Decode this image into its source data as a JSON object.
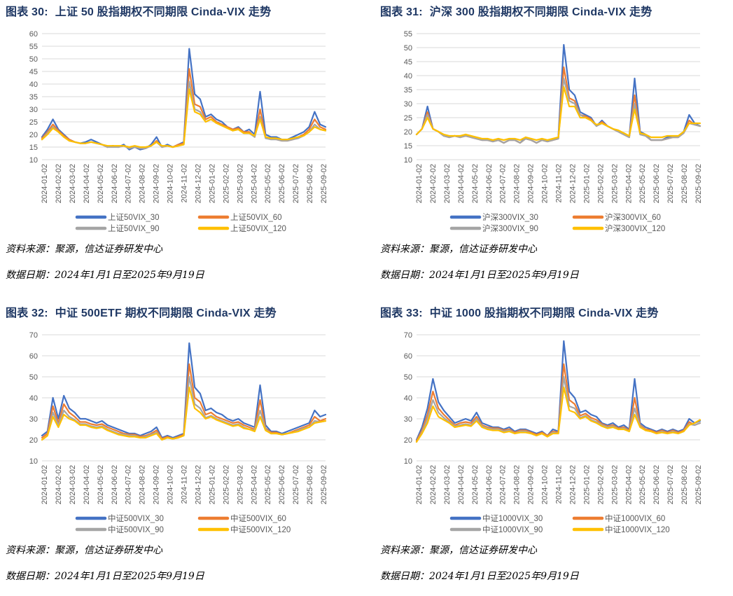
{
  "source_label": "资料来源：聚源，信达证券研发中心",
  "date_label": "数据日期：2024年1月1日至2025年9月19日",
  "xticks": [
    "2024-01-02",
    "2024-02-02",
    "2024-03-02",
    "2024-04-02",
    "2024-05-02",
    "2024-06-02",
    "2024-07-02",
    "2024-08-02",
    "2024-09-02",
    "2024-10-02",
    "2024-11-02",
    "2024-12-02",
    "2025-01-02",
    "2025-02-02",
    "2025-03-02",
    "2025-04-02",
    "2025-05-02",
    "2025-06-02",
    "2025-07-02",
    "2025-08-02",
    "2025-09-02"
  ],
  "colors": {
    "s30": "#4472c4",
    "s60": "#ed7d31",
    "s90": "#a5a5a5",
    "s120": "#ffc000",
    "title": "#1f3864"
  },
  "chart_data": [
    {
      "type": "line",
      "fig_num": "图表 30:",
      "title": "上证 50 股指期权不同期限 Cinda-VIX 走势",
      "ylim": [
        10,
        60
      ],
      "ystep": 5,
      "grid": true,
      "legend": "bottom",
      "series_names": [
        "上证50VIX_30",
        "上证50VIX_60",
        "上证50VIX_90",
        "上证50VIX_120"
      ],
      "series": [
        {
          "name": "上证50VIX_30",
          "values": [
            19,
            22,
            26,
            22,
            20,
            18,
            17,
            16.5,
            17,
            18,
            17,
            16,
            15,
            15.5,
            15,
            16,
            14,
            15,
            14,
            14.5,
            16,
            19,
            15,
            16,
            15,
            16,
            17,
            54,
            36,
            34,
            27,
            28,
            26,
            25,
            23,
            22,
            23,
            21,
            22,
            20,
            37,
            20,
            19,
            19,
            18,
            18,
            19,
            20,
            21,
            23,
            29,
            24,
            23
          ]
        },
        {
          "name": "上证50VIX_60",
          "values": [
            18.5,
            21,
            24,
            21.5,
            19.5,
            18,
            17,
            16.5,
            16.5,
            17,
            16.5,
            16,
            15,
            15.5,
            15,
            15.5,
            14.5,
            15,
            14.5,
            14.5,
            15.5,
            17.5,
            15,
            15.5,
            15,
            16,
            16.5,
            46,
            32,
            31,
            26,
            27,
            25,
            24,
            23,
            22,
            22.5,
            21,
            21,
            19,
            30,
            19,
            18.5,
            18,
            17.5,
            17.5,
            18,
            19,
            20,
            22,
            26,
            23,
            22
          ]
        },
        {
          "name": "上证50VIX_90",
          "values": [
            18,
            20.5,
            23,
            21,
            19,
            17.5,
            17,
            16.5,
            16.5,
            17,
            16.5,
            16,
            15,
            15,
            15,
            15.5,
            14.5,
            15,
            14.5,
            14.5,
            15.5,
            17,
            15,
            15.5,
            15,
            15.5,
            16,
            41,
            30,
            29,
            25,
            26,
            24.5,
            23.5,
            22.5,
            21.5,
            22,
            20.5,
            20.5,
            19,
            27,
            18.5,
            18,
            18,
            17.5,
            17.5,
            18,
            18.5,
            19.5,
            21,
            24,
            22,
            21.5
          ]
        },
        {
          "name": "上证50VIX_120",
          "values": [
            18,
            20,
            22.5,
            21,
            19,
            17.5,
            17,
            16.5,
            16.5,
            17,
            16.5,
            16,
            15.5,
            15.5,
            15.5,
            15.5,
            15,
            15.5,
            15,
            15,
            15.5,
            17,
            15.5,
            15.5,
            15,
            15.5,
            16,
            38,
            29,
            28,
            25,
            26,
            24.5,
            23.5,
            22.5,
            21.5,
            22,
            20.5,
            20.5,
            19.5,
            26,
            19,
            18.5,
            18.5,
            18,
            18,
            18.5,
            19,
            19.5,
            21,
            23,
            22,
            21.5
          ]
        }
      ]
    },
    {
      "type": "line",
      "fig_num": "图表 31:",
      "title": "沪深 300 股指期权不同期限 Cinda-VIX 走势",
      "ylim": [
        10,
        55
      ],
      "ystep": 5,
      "grid": true,
      "legend": "bottom",
      "series_names": [
        "沪深300VIX_30",
        "沪深300VIX_60",
        "沪深300VIX_90",
        "沪深300VIX_120"
      ],
      "series": [
        {
          "name": "沪深300VIX_30",
          "values": [
            19,
            21,
            29,
            21,
            20,
            18.5,
            18,
            18.5,
            18,
            19,
            18,
            17.5,
            17,
            17,
            16.5,
            17,
            16,
            17,
            17,
            16,
            18,
            17,
            16,
            17,
            16.5,
            17,
            18,
            51,
            35,
            33,
            27,
            26,
            25,
            22,
            24,
            22,
            21,
            20,
            19,
            18,
            39,
            20,
            19,
            17,
            17,
            17,
            18,
            18,
            18,
            20,
            26,
            23,
            22
          ]
        },
        {
          "name": "沪深300VIX_60",
          "values": [
            19,
            21,
            27,
            21,
            20,
            18.5,
            18,
            18.5,
            18,
            18.5,
            18,
            17.5,
            17,
            17,
            16.5,
            17,
            16,
            17,
            17,
            16,
            17.5,
            17,
            16,
            17,
            16.5,
            17,
            17.5,
            43,
            32,
            31,
            26,
            25.5,
            24.5,
            22,
            23.5,
            22,
            21,
            20,
            19,
            18,
            33,
            19.5,
            18.5,
            17,
            17,
            17,
            17.5,
            18,
            18,
            19.5,
            24,
            22.5,
            22
          ]
        },
        {
          "name": "沪深300VIX_90",
          "values": [
            19,
            21,
            26,
            21,
            20,
            18.5,
            18,
            18.5,
            18,
            18.5,
            18,
            17.5,
            17,
            17,
            16.5,
            17,
            16,
            17,
            17,
            16,
            17.5,
            17,
            16,
            17,
            16.5,
            17,
            17.5,
            39,
            31,
            30,
            26,
            25,
            24,
            22,
            23,
            22,
            21,
            20,
            19,
            18,
            30,
            19,
            18.5,
            17,
            17,
            17,
            17.5,
            18,
            18,
            19.5,
            23,
            22.5,
            22
          ]
        },
        {
          "name": "沪深300VIX_120",
          "values": [
            19,
            21,
            25,
            21,
            20,
            19,
            18.5,
            18.5,
            18.5,
            19,
            18.5,
            18,
            17.5,
            17.5,
            17,
            17.5,
            17,
            17.5,
            17.5,
            17,
            18,
            17.5,
            17,
            17.5,
            17,
            17.5,
            18,
            36,
            29,
            29,
            25,
            25,
            24,
            22.5,
            23,
            22,
            21,
            20.5,
            19.5,
            18.5,
            28,
            19.5,
            19,
            18,
            18,
            18,
            18.5,
            18.5,
            18.5,
            20,
            23,
            23,
            23
          ]
        }
      ]
    },
    {
      "type": "line",
      "fig_num": "图表 32:",
      "title": "中证 500ETF 期权不同期限 Cinda-VIX 走势",
      "ylim": [
        10,
        70
      ],
      "ystep": 10,
      "grid": true,
      "legend": "bottom",
      "series_names": [
        "中证500VIX_30",
        "中证500VIX_60",
        "中证500VIX_90",
        "中证500VIX_120"
      ],
      "series": [
        {
          "name": "中证500VIX_30",
          "values": [
            22,
            24,
            40,
            30,
            41,
            35,
            33,
            30,
            30,
            29,
            28,
            29,
            27,
            26,
            25,
            24,
            23,
            23,
            22,
            23,
            24,
            26,
            21,
            22,
            21,
            22,
            23,
            66,
            45,
            42,
            34,
            35,
            33,
            32,
            30,
            29,
            30,
            28,
            27,
            26,
            46,
            27,
            24,
            24,
            23,
            24,
            25,
            26,
            27,
            28,
            34,
            31,
            32
          ]
        },
        {
          "name": "中证500VIX_60",
          "values": [
            21,
            23,
            36,
            28,
            37,
            33,
            31,
            28.5,
            28.5,
            27.5,
            27,
            27.5,
            26,
            25,
            24,
            23,
            22.5,
            22.5,
            21.5,
            22,
            23,
            24.5,
            20.5,
            21.5,
            20.5,
            21.5,
            22.5,
            56,
            40,
            38,
            32,
            33,
            31,
            30,
            29,
            28,
            28.5,
            27,
            26,
            25,
            39,
            25.5,
            23.5,
            23.5,
            22.5,
            23,
            24,
            25,
            26,
            27,
            31,
            29,
            30
          ]
        },
        {
          "name": "中证500VIX_90",
          "values": [
            20,
            22,
            33,
            27,
            34,
            31,
            29.5,
            27.5,
            27.5,
            26.5,
            26,
            26.5,
            25,
            24,
            23,
            22.5,
            22,
            22,
            21,
            21.5,
            22.5,
            23.5,
            20,
            21,
            20.5,
            21,
            22,
            50,
            37,
            35,
            30.5,
            31.5,
            30,
            29,
            28,
            27,
            27.5,
            26,
            25,
            24.5,
            34,
            25,
            23,
            23,
            22.5,
            23,
            23.5,
            24.5,
            25.5,
            26,
            29,
            28.5,
            29
          ]
        },
        {
          "name": "中证500VIX_120",
          "values": [
            20,
            22,
            31,
            26,
            32,
            30,
            29,
            27,
            27,
            26,
            25.5,
            26,
            24.5,
            23.5,
            22.5,
            22,
            21.5,
            21.5,
            21,
            21,
            22,
            23,
            20,
            21,
            20.5,
            21,
            22,
            45,
            35,
            33,
            30,
            31,
            29.5,
            28.5,
            27.5,
            26.5,
            27,
            25.5,
            25,
            24,
            31,
            24.5,
            23,
            23,
            22.5,
            23,
            23.5,
            24,
            25,
            26,
            28,
            28.5,
            29
          ]
        }
      ]
    },
    {
      "type": "line",
      "fig_num": "图表 33:",
      "title": "中证 1000 股指期权不同期限 Cinda-VIX 走势",
      "ylim": [
        10,
        70
      ],
      "ystep": 10,
      "grid": true,
      "legend": "bottom",
      "series_names": [
        "中证1000VIX_30",
        "中证1000VIX_60",
        "中证1000VIX_90",
        "中证1000VIX_120"
      ],
      "series": [
        {
          "name": "中证1000VIX_30",
          "values": [
            20,
            26,
            35,
            49,
            38,
            34,
            31,
            28,
            29,
            30,
            29,
            33,
            28,
            27,
            26,
            26,
            25,
            26,
            24,
            25,
            25,
            24,
            23,
            24,
            22,
            25,
            24,
            67,
            43,
            40,
            33,
            34,
            32,
            31,
            28,
            27,
            28,
            26,
            27,
            25,
            49,
            28,
            26,
            25,
            24,
            25,
            24,
            25,
            24,
            25,
            30,
            28,
            29
          ]
        },
        {
          "name": "中证1000VIX_60",
          "values": [
            19.5,
            24.5,
            32,
            43,
            35,
            32,
            29.5,
            27,
            28,
            28.5,
            28,
            31,
            27,
            26,
            25.5,
            25.5,
            24.5,
            25,
            23.5,
            24.5,
            24.5,
            23.5,
            22.5,
            23.5,
            22,
            24,
            23.5,
            56,
            39,
            37,
            31.5,
            32.5,
            30.5,
            29.5,
            27.5,
            26.5,
            27,
            25.5,
            26,
            24.5,
            40,
            27,
            25,
            24.5,
            23.5,
            24.5,
            23.5,
            24.5,
            23.5,
            24.5,
            28.5,
            27,
            28
          ]
        },
        {
          "name": "中证1000VIX_90",
          "values": [
            19,
            23.5,
            30,
            39,
            33,
            30.5,
            28.5,
            26.5,
            27,
            27.5,
            27,
            30,
            26.5,
            25.5,
            25,
            25,
            24,
            24.5,
            23,
            24,
            24,
            23,
            22,
            23,
            21.5,
            23.5,
            23,
            50,
            36,
            35,
            30.5,
            31.5,
            29.5,
            28.5,
            27,
            26,
            26.5,
            25,
            25.5,
            24,
            35,
            26.5,
            24.5,
            24,
            23,
            24,
            23,
            24,
            23,
            24,
            27.5,
            27,
            28
          ]
        },
        {
          "name": "中证1000VIX_120",
          "values": [
            19,
            23,
            28,
            36,
            31,
            29.5,
            28,
            26,
            26.5,
            27,
            26.5,
            29,
            26,
            25,
            24.5,
            24.5,
            23.5,
            24,
            23,
            23.5,
            23.5,
            23,
            22,
            23,
            21.5,
            23,
            23,
            45,
            34,
            33,
            30,
            31,
            29,
            28,
            26.5,
            25.5,
            26,
            25,
            25,
            24,
            32,
            26,
            24.5,
            24,
            23,
            23.5,
            23,
            23.5,
            23,
            24,
            27,
            28,
            29.5
          ]
        }
      ]
    }
  ]
}
